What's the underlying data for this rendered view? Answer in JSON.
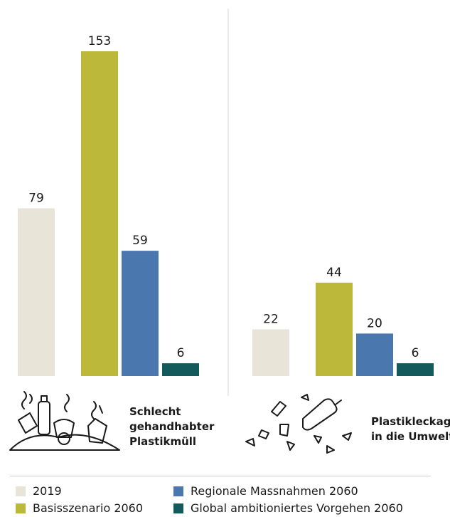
{
  "colors": {
    "y2019": "#e8e4d7",
    "basis": "#bbb83a",
    "regional": "#4a77ad",
    "global": "#145a5c"
  },
  "chart_data": {
    "type": "bar",
    "categories": [
      "Schlecht gehandhabter Plastikmüll",
      "Plastikleckage in die Umwelt"
    ],
    "category_lines": [
      [
        "Schlecht",
        "gehandhabter",
        "Plastikmüll"
      ],
      [
        "Plastikleckage",
        "in die Umwelt"
      ]
    ],
    "category_icons": [
      "waste-pile-icon",
      "scattered-plastic-icon"
    ],
    "series": [
      {
        "name": "2019",
        "values": [
          79,
          22
        ],
        "color": "#e8e4d7"
      },
      {
        "name": "Basisszenario 2060",
        "values": [
          153,
          44
        ],
        "color": "#bbb83a"
      },
      {
        "name": "Regionale Massnahmen 2060",
        "values": [
          59,
          20
        ],
        "color": "#4a77ad"
      },
      {
        "name": "Global ambitioniertes Vorgehen 2060",
        "values": [
          6,
          6
        ],
        "color": "#145a5c"
      }
    ],
    "data_labels": true,
    "ylim": [
      0,
      153
    ],
    "grid": false,
    "legend": "bottom",
    "xlabel": "",
    "ylabel": ""
  },
  "legend": {
    "items": [
      {
        "label": "2019",
        "color": "#e8e4d7"
      },
      {
        "label": "Regionale Massnahmen 2060",
        "color": "#4a77ad"
      },
      {
        "label": "Basisszenario 2060",
        "color": "#bbb83a"
      },
      {
        "label": "Global ambitioniertes Vorgehen 2060",
        "color": "#145a5c"
      }
    ]
  }
}
